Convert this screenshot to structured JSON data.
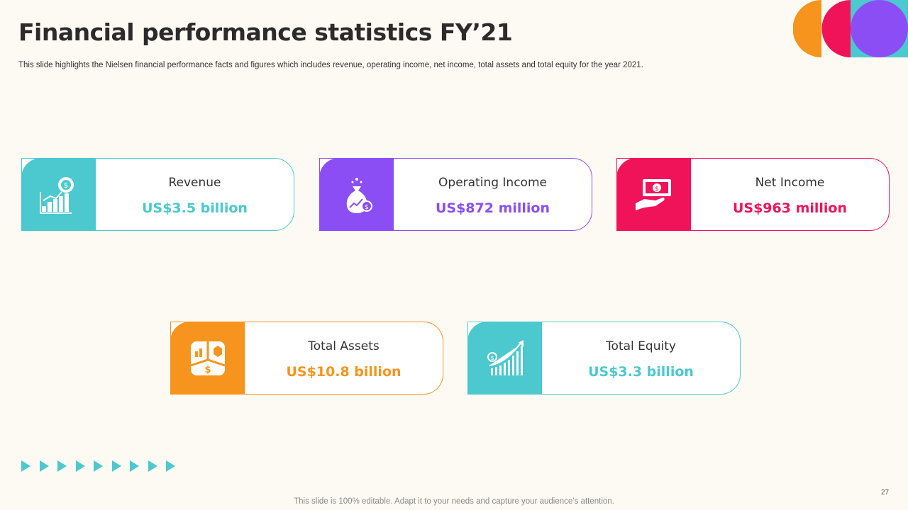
{
  "slide": {
    "title": "Financial performance statistics FY’21",
    "subtitle": "This slide highlights the Nielsen financial performance facts and figures which includes revenue, operating income, net income, total assets and total equity for the year  2021.",
    "footer": "This slide is 100% editable. Adapt it to your needs and capture your audience’s attention.",
    "page_number": "27"
  },
  "cards": [
    {
      "label": "Revenue",
      "value": "US$3.5 billion",
      "color": "#4bc9cf",
      "icon": "revenue-chart-gear-icon"
    },
    {
      "label": "Operating Income",
      "value": "US$872 million",
      "color": "#8b4ef5",
      "icon": "money-bag-icon"
    },
    {
      "label": "Net Income",
      "value": "US$963 million",
      "color": "#f0135a",
      "icon": "hand-cash-icon"
    },
    {
      "label": "Total Assets",
      "value": "US$10.8 billion",
      "color": "#f7941d",
      "icon": "assets-icon"
    },
    {
      "label": "Total Equity",
      "value": "US$3.3 billion",
      "color": "#4bc9cf",
      "icon": "growth-chart-icon"
    }
  ],
  "decoration_colors": [
    "#f7941d",
    "#f0135a",
    "#4bc9cf",
    "#8b4ef5"
  ]
}
